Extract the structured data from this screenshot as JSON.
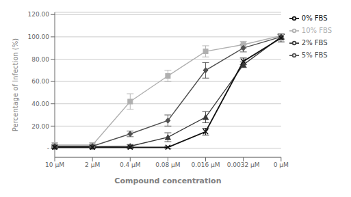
{
  "chart_data": {
    "type": "line",
    "xlabel": "Compound concentration",
    "ylabel": "Percentage of Infection (%)",
    "categories": [
      "10 μM",
      "2 μM",
      "0.4 μM",
      "0.08 μM",
      "0.016 μM",
      "0.0032 μM",
      "0 μM"
    ],
    "series": [
      {
        "name": "10% FBS",
        "color": "#b0b0b0",
        "marker": "square",
        "values": [
          3.0,
          3.0,
          42.0,
          65.0,
          87.0,
          93.0,
          101.0
        ],
        "yerr": [
          2.0,
          2.0,
          7.0,
          5.0,
          5.0,
          3.0,
          2.0
        ]
      },
      {
        "name": "5% FBS",
        "color": "#505050",
        "marker": "diamond",
        "values": [
          2.0,
          2.0,
          13.0,
          25.0,
          70.0,
          90.0,
          100.0
        ],
        "yerr": [
          1.5,
          1.5,
          2.5,
          5.0,
          7.0,
          3.5,
          2.0
        ]
      },
      {
        "name": "2% FBS",
        "color": "#383838",
        "marker": "triangle",
        "values": [
          1.5,
          1.5,
          2.0,
          10.0,
          28.0,
          75.0,
          100.0
        ],
        "yerr": [
          1.0,
          1.0,
          1.5,
          4.0,
          5.0,
          2.5,
          2.0
        ]
      },
      {
        "name": "0% FBS",
        "color": "#111111",
        "marker": "x",
        "values": [
          1.0,
          1.0,
          1.0,
          1.0,
          15.0,
          78.0,
          99.0
        ],
        "yerr": [
          0.8,
          0.8,
          0.8,
          0.8,
          3.0,
          3.0,
          3.5
        ]
      }
    ],
    "ylim": [
      -8,
      122
    ],
    "yticks": [
      {
        "value": 0,
        "label": "-"
      },
      {
        "value": 20.0,
        "label": "20.00"
      },
      {
        "value": 40.0,
        "label": "40.00"
      },
      {
        "value": 60.0,
        "label": "60.00"
      },
      {
        "value": 80.0,
        "label": "80.00"
      },
      {
        "value": 100.0,
        "label": "100.00"
      },
      {
        "value": 120.0,
        "label": "120.00"
      }
    ],
    "grid": true,
    "legend": "right"
  }
}
